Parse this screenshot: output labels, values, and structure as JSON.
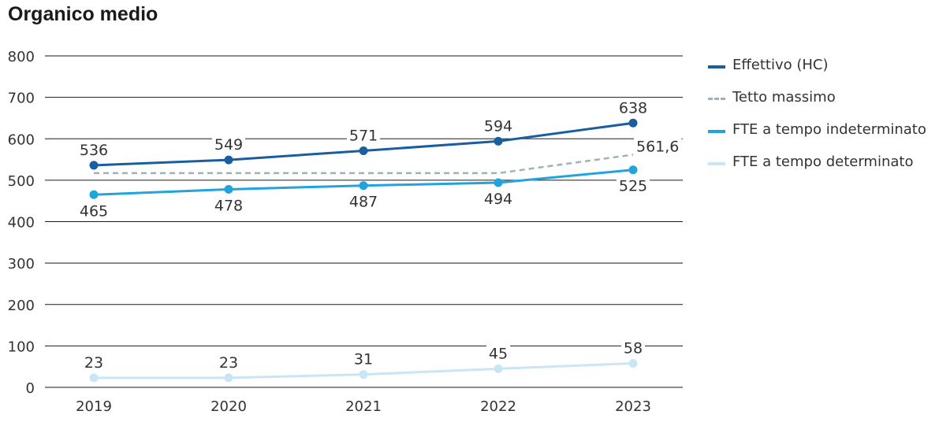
{
  "title": "Organico medio",
  "chart_data": {
    "type": "line",
    "x": [
      "2019",
      "2020",
      "2021",
      "2022",
      "2023"
    ],
    "ylim": [
      0,
      800
    ],
    "yticks": [
      0,
      100,
      200,
      300,
      400,
      500,
      600,
      700,
      800
    ],
    "grid": "horizontal",
    "legend_position": "right",
    "series": [
      {
        "name": "Effettivo (HC)",
        "values": [
          536,
          549,
          571,
          594,
          638
        ],
        "labels": [
          "536",
          "549",
          "571",
          "594",
          "638"
        ],
        "label_pos": [
          "above",
          "above",
          "above",
          "above",
          "above"
        ],
        "color": "#1a5ea0",
        "style": "solid",
        "markers": true
      },
      {
        "name": "Tetto massimo",
        "values": [
          517,
          517,
          517,
          517,
          561.6
        ],
        "labels": [
          "",
          "",
          "",
          "",
          "561,6"
        ],
        "label_pos": [
          "",
          "",
          "",
          "",
          "right"
        ],
        "color": "#9fb3b7",
        "style": "dashed",
        "markers": false
      },
      {
        "name": "FTE a tempo indeterminato",
        "values": [
          465,
          478,
          487,
          494,
          525
        ],
        "labels": [
          "465",
          "478",
          "487",
          "494",
          "525"
        ],
        "label_pos": [
          "below",
          "below",
          "below",
          "below",
          "below"
        ],
        "color": "#22a3dd",
        "style": "solid",
        "markers": true
      },
      {
        "name": "FTE a tempo determinato",
        "values": [
          23,
          23,
          31,
          45,
          58
        ],
        "labels": [
          "23",
          "23",
          "31",
          "45",
          "58"
        ],
        "label_pos": [
          "above",
          "above",
          "above",
          "above",
          "above"
        ],
        "color": "#c9e6f6",
        "style": "solid",
        "markers": true
      }
    ]
  }
}
